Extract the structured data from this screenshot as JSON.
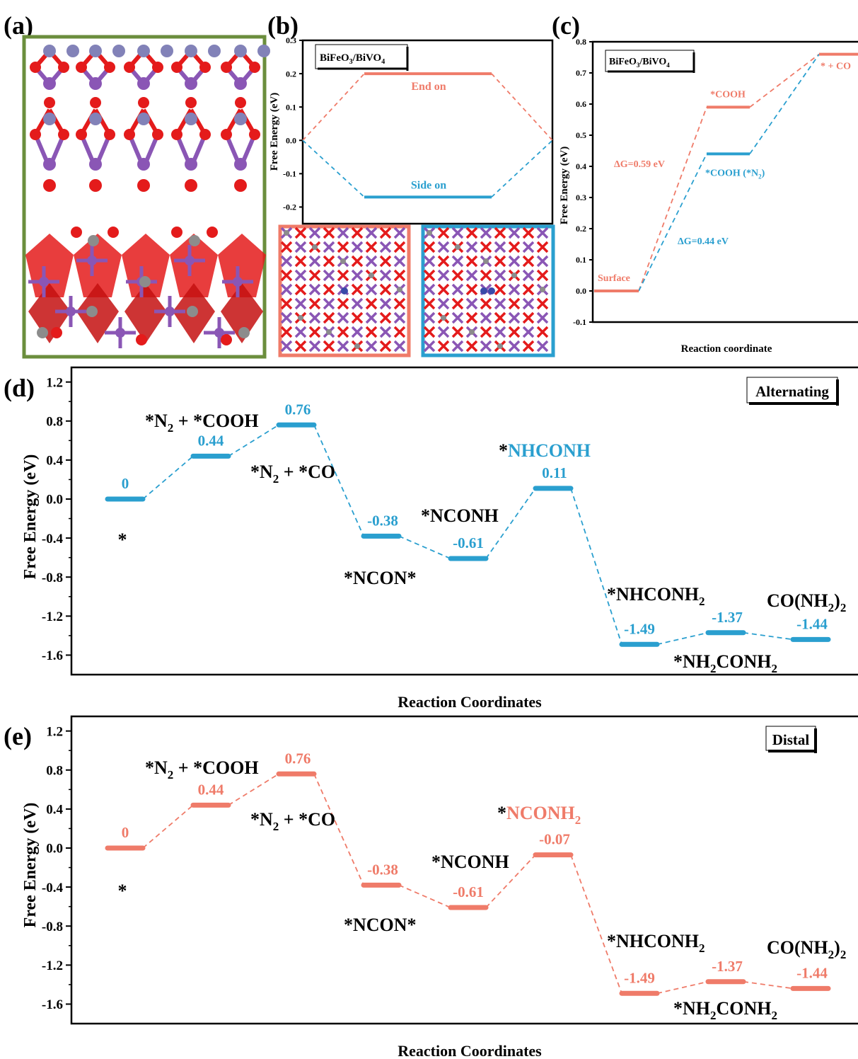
{
  "colors": {
    "salmon": "#ef7b69",
    "blue": "#2a9fcf",
    "frame_green": "#6b8e3d",
    "frame_salmon": "#ef7b69",
    "frame_blue": "#2a9fcf",
    "oxygen": "#e41b1b",
    "bismuth": "#8a56b5",
    "vanadium_fe": "#8282b8",
    "grey_atom": "#8c8c8c"
  },
  "panel_labels": {
    "a": "(a)",
    "b": "(b)",
    "c": "(c)",
    "d": "(d)",
    "e": "(e)"
  },
  "chart_data": [
    {
      "panel": "b",
      "type": "line",
      "annotation": "BiFeO3/BiVO4",
      "ylabel": "Free Energy (eV)",
      "ylim": [
        -0.25,
        0.3
      ],
      "yticks": [
        0.3,
        0.2,
        0.1,
        0.0,
        -0.1,
        -0.2
      ],
      "ytick_labels": [
        "0.3",
        "0.2",
        "0.1",
        "0.0",
        "-0.1",
        "-0.2"
      ],
      "series": [
        {
          "name": "End on",
          "color": "#ef7b69",
          "levels": [
            0.0,
            0.2,
            0.0
          ]
        },
        {
          "name": "Side on",
          "color": "#2a9fcf",
          "levels": [
            0.0,
            -0.17,
            0.0
          ]
        }
      ]
    },
    {
      "panel": "c",
      "type": "line",
      "annotation": "BiFeO3/BiVO4",
      "xlabel": "Reaction coordinate",
      "ylabel": "Free Energy (eV)",
      "ylim": [
        -0.1,
        0.8
      ],
      "yticks": [
        0.8,
        0.7,
        0.6,
        0.5,
        0.4,
        0.3,
        0.2,
        0.1,
        0.0,
        -0.1
      ],
      "ytick_labels": [
        "0.8",
        "0.7",
        "0.6",
        "0.5",
        "0.4",
        "0.3",
        "0.2",
        "0.1",
        "0.0",
        "-0.1"
      ],
      "levels": [
        {
          "label": "Surface",
          "value": 0.0
        },
        {
          "label": "*COOH",
          "value": 0.59
        },
        {
          "label": "*COOH (*N2)",
          "value": 0.44
        },
        {
          "label": "* + CO",
          "value": 0.76
        }
      ],
      "annotations": [
        "ΔG=0.59 eV",
        "ΔG=0.44 eV"
      ]
    },
    {
      "panel": "d",
      "type": "line",
      "legend": "Alternating",
      "xlabel": "Reaction Coordinates",
      "ylabel": "Free Energy (eV)",
      "ylim": [
        -1.8,
        1.35
      ],
      "yticks": [
        1.2,
        0.8,
        0.4,
        0.0,
        -0.4,
        -0.8,
        -1.2,
        -1.6
      ],
      "ytick_labels": [
        "1.2",
        "0.8",
        "0.4",
        "0.0",
        "-0.4",
        "-0.8",
        "-1.2",
        "-1.6"
      ],
      "values": [
        0,
        0.44,
        0.76,
        -0.38,
        -0.61,
        0.11,
        -1.49,
        -1.37,
        -1.44
      ],
      "value_labels": [
        "0",
        "0.44",
        "0.76",
        "-0.38",
        "-0.61",
        "0.11",
        "-1.49",
        "-1.37",
        "-1.44"
      ],
      "species": [
        "*",
        "*N2 + *COOH",
        "*N2 + *CO",
        "*NCON*",
        "*NCONH",
        "*NHCONH",
        "*NHCONH2",
        "*NH2CONH2",
        "CO(NH2)2"
      ]
    },
    {
      "panel": "e",
      "type": "line",
      "legend": "Distal",
      "xlabel": "Reaction Coordinates",
      "ylabel": "Free Energy (eV)",
      "ylim": [
        -1.8,
        1.35
      ],
      "yticks": [
        1.2,
        0.8,
        0.4,
        0.0,
        -0.4,
        -0.8,
        -1.2,
        -1.6
      ],
      "ytick_labels": [
        "1.2",
        "0.8",
        "0.4",
        "0.0",
        "-0.4",
        "-0.8",
        "-1.2",
        "-1.6"
      ],
      "values": [
        0,
        0.44,
        0.76,
        -0.38,
        -0.61,
        -0.07,
        -1.49,
        -1.37,
        -1.44
      ],
      "value_labels": [
        "0",
        "0.44",
        "0.76",
        "-0.38",
        "-0.61",
        "-0.07",
        "-1.49",
        "-1.37",
        "-1.44"
      ],
      "species": [
        "*",
        "*N2 + *COOH",
        "*N2 + *CO",
        "*NCON*",
        "*NCONH",
        "*NCONH2",
        "*NHCONH2",
        "*NH2CONH2",
        "CO(NH2)2"
      ]
    }
  ]
}
